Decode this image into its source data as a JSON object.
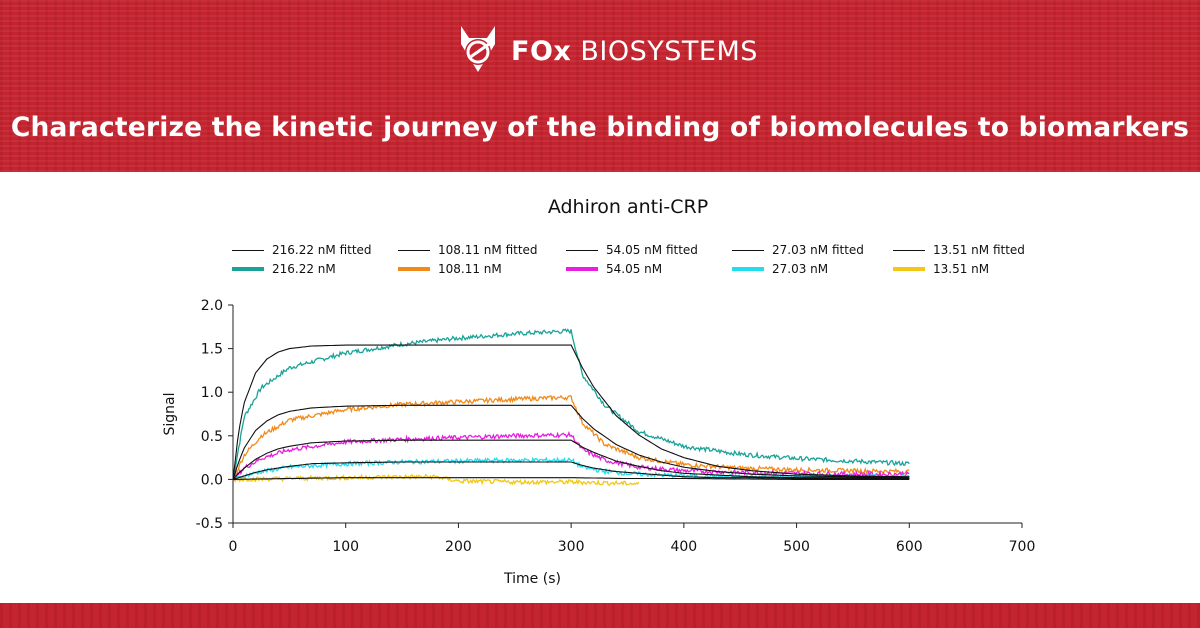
{
  "brand": {
    "name_bold": "FOx",
    "name_rest": "BIOSYSTEMS",
    "accent": "#c4242f",
    "logo_icon": "fox-icon"
  },
  "headline": "Characterize the kinetic journey of the binding of biomolecules to biomarkers",
  "chart_data": {
    "type": "line",
    "title": "Adhiron anti-CRP",
    "xlabel": "Time (s)",
    "ylabel": "Signal",
    "xlim": [
      0,
      700
    ],
    "ylim": [
      -0.5,
      2.0
    ],
    "xticks": [
      0,
      100,
      200,
      300,
      400,
      500,
      600,
      700
    ],
    "yticks": [
      -0.5,
      0.0,
      0.5,
      1.0,
      1.5,
      2.0
    ],
    "ytick_labels": [
      "-0.5",
      "0.0",
      "0.5",
      "1.0",
      "1.5",
      "2.0"
    ],
    "association_end": 300,
    "legend_fitted": [
      "216.22 nM fitted",
      "108.11 nM fitted",
      "54.05 nM fitted",
      "27.03 nM fitted",
      "13.51 nM fitted"
    ],
    "legend_measured": [
      "216.22 nM",
      "108.11 nM",
      "54.05 nM",
      "27.03 nM",
      "13.51 nM"
    ],
    "series": [
      {
        "name": "216.22 nM",
        "color": "#19a399",
        "x": [
          0,
          10,
          25,
          50,
          100,
          150,
          200,
          250,
          295,
          300,
          310,
          330,
          360,
          400,
          450,
          500,
          550,
          600
        ],
        "values": [
          0.0,
          0.72,
          1.05,
          1.28,
          1.45,
          1.55,
          1.62,
          1.67,
          1.7,
          1.7,
          1.2,
          0.85,
          0.55,
          0.38,
          0.29,
          0.24,
          0.21,
          0.18
        ]
      },
      {
        "name": "108.11 nM",
        "color": "#f28a18",
        "x": [
          0,
          10,
          25,
          50,
          100,
          150,
          200,
          250,
          295,
          300,
          310,
          330,
          360,
          400,
          450,
          500,
          550,
          600
        ],
        "values": [
          0.0,
          0.28,
          0.5,
          0.68,
          0.8,
          0.86,
          0.89,
          0.92,
          0.94,
          0.94,
          0.65,
          0.4,
          0.25,
          0.17,
          0.13,
          0.11,
          0.1,
          0.09
        ]
      },
      {
        "name": "54.05 nM",
        "color": "#e81ee0",
        "x": [
          0,
          10,
          25,
          50,
          100,
          150,
          200,
          250,
          295,
          300,
          310,
          330,
          360,
          400,
          450,
          500,
          550,
          600
        ],
        "values": [
          0.0,
          0.13,
          0.24,
          0.34,
          0.43,
          0.46,
          0.48,
          0.5,
          0.51,
          0.51,
          0.34,
          0.22,
          0.14,
          0.1,
          0.08,
          0.07,
          0.06,
          0.06
        ]
      },
      {
        "name": "27.03 nM",
        "color": "#22ddf0",
        "x": [
          0,
          10,
          25,
          50,
          100,
          150,
          200,
          250,
          295,
          300,
          310,
          330,
          360,
          400,
          450,
          500,
          550,
          600
        ],
        "values": [
          0.0,
          0.04,
          0.09,
          0.14,
          0.18,
          0.2,
          0.21,
          0.22,
          0.22,
          0.22,
          0.14,
          0.09,
          0.06,
          0.04,
          0.03,
          0.03,
          0.03,
          0.03
        ]
      },
      {
        "name": "13.51 nM",
        "color": "#f2c814",
        "x": [
          0,
          50,
          100,
          150,
          180,
          200,
          250,
          300,
          330,
          360
        ],
        "values": [
          0.0,
          0.01,
          0.02,
          0.03,
          0.03,
          -0.02,
          -0.03,
          -0.03,
          -0.04,
          -0.05
        ]
      }
    ],
    "fitted_series": [
      {
        "name": "216.22 nM fitted",
        "color": "#111111",
        "x": [
          0,
          5,
          10,
          20,
          30,
          40,
          50,
          70,
          100,
          150,
          200,
          250,
          300,
          310,
          320,
          340,
          360,
          380,
          400,
          430,
          460,
          500,
          550,
          600
        ],
        "values": [
          0.0,
          0.55,
          0.88,
          1.22,
          1.38,
          1.46,
          1.5,
          1.53,
          1.54,
          1.54,
          1.54,
          1.54,
          1.54,
          1.28,
          1.06,
          0.73,
          0.51,
          0.35,
          0.25,
          0.15,
          0.1,
          0.06,
          0.04,
          0.03
        ]
      },
      {
        "name": "108.11 nM fitted",
        "color": "#111111",
        "x": [
          0,
          5,
          10,
          20,
          30,
          40,
          50,
          70,
          100,
          150,
          200,
          250,
          300,
          310,
          320,
          340,
          360,
          380,
          400,
          430,
          460,
          500,
          550,
          600
        ],
        "values": [
          0.0,
          0.2,
          0.36,
          0.56,
          0.67,
          0.74,
          0.78,
          0.82,
          0.84,
          0.85,
          0.85,
          0.85,
          0.85,
          0.7,
          0.58,
          0.4,
          0.28,
          0.2,
          0.14,
          0.09,
          0.06,
          0.04,
          0.03,
          0.02
        ]
      },
      {
        "name": "54.05 nM fitted",
        "color": "#111111",
        "x": [
          0,
          5,
          10,
          20,
          30,
          40,
          50,
          70,
          100,
          150,
          200,
          250,
          300,
          310,
          320,
          340,
          360,
          380,
          400,
          430,
          460,
          500,
          550,
          600
        ],
        "values": [
          0.0,
          0.07,
          0.13,
          0.23,
          0.3,
          0.35,
          0.38,
          0.42,
          0.44,
          0.45,
          0.45,
          0.45,
          0.45,
          0.37,
          0.31,
          0.21,
          0.15,
          0.1,
          0.07,
          0.05,
          0.03,
          0.02,
          0.02,
          0.01
        ]
      },
      {
        "name": "27.03 nM fitted",
        "color": "#111111",
        "x": [
          0,
          5,
          10,
          20,
          30,
          40,
          50,
          70,
          100,
          150,
          200,
          250,
          300,
          310,
          320,
          340,
          360,
          380,
          400,
          430,
          460,
          500,
          550,
          600
        ],
        "values": [
          0.0,
          0.02,
          0.04,
          0.08,
          0.11,
          0.13,
          0.15,
          0.18,
          0.19,
          0.2,
          0.2,
          0.2,
          0.2,
          0.16,
          0.13,
          0.09,
          0.07,
          0.05,
          0.03,
          0.02,
          0.02,
          0.01,
          0.01,
          0.01
        ]
      },
      {
        "name": "13.51 nM fitted",
        "color": "#111111",
        "x": [
          0,
          50,
          100,
          150,
          200,
          250,
          300,
          350,
          400,
          500,
          600
        ],
        "values": [
          0.0,
          0.01,
          0.02,
          0.02,
          0.02,
          0.02,
          0.02,
          0.01,
          0.01,
          0.0,
          0.0
        ]
      }
    ]
  }
}
